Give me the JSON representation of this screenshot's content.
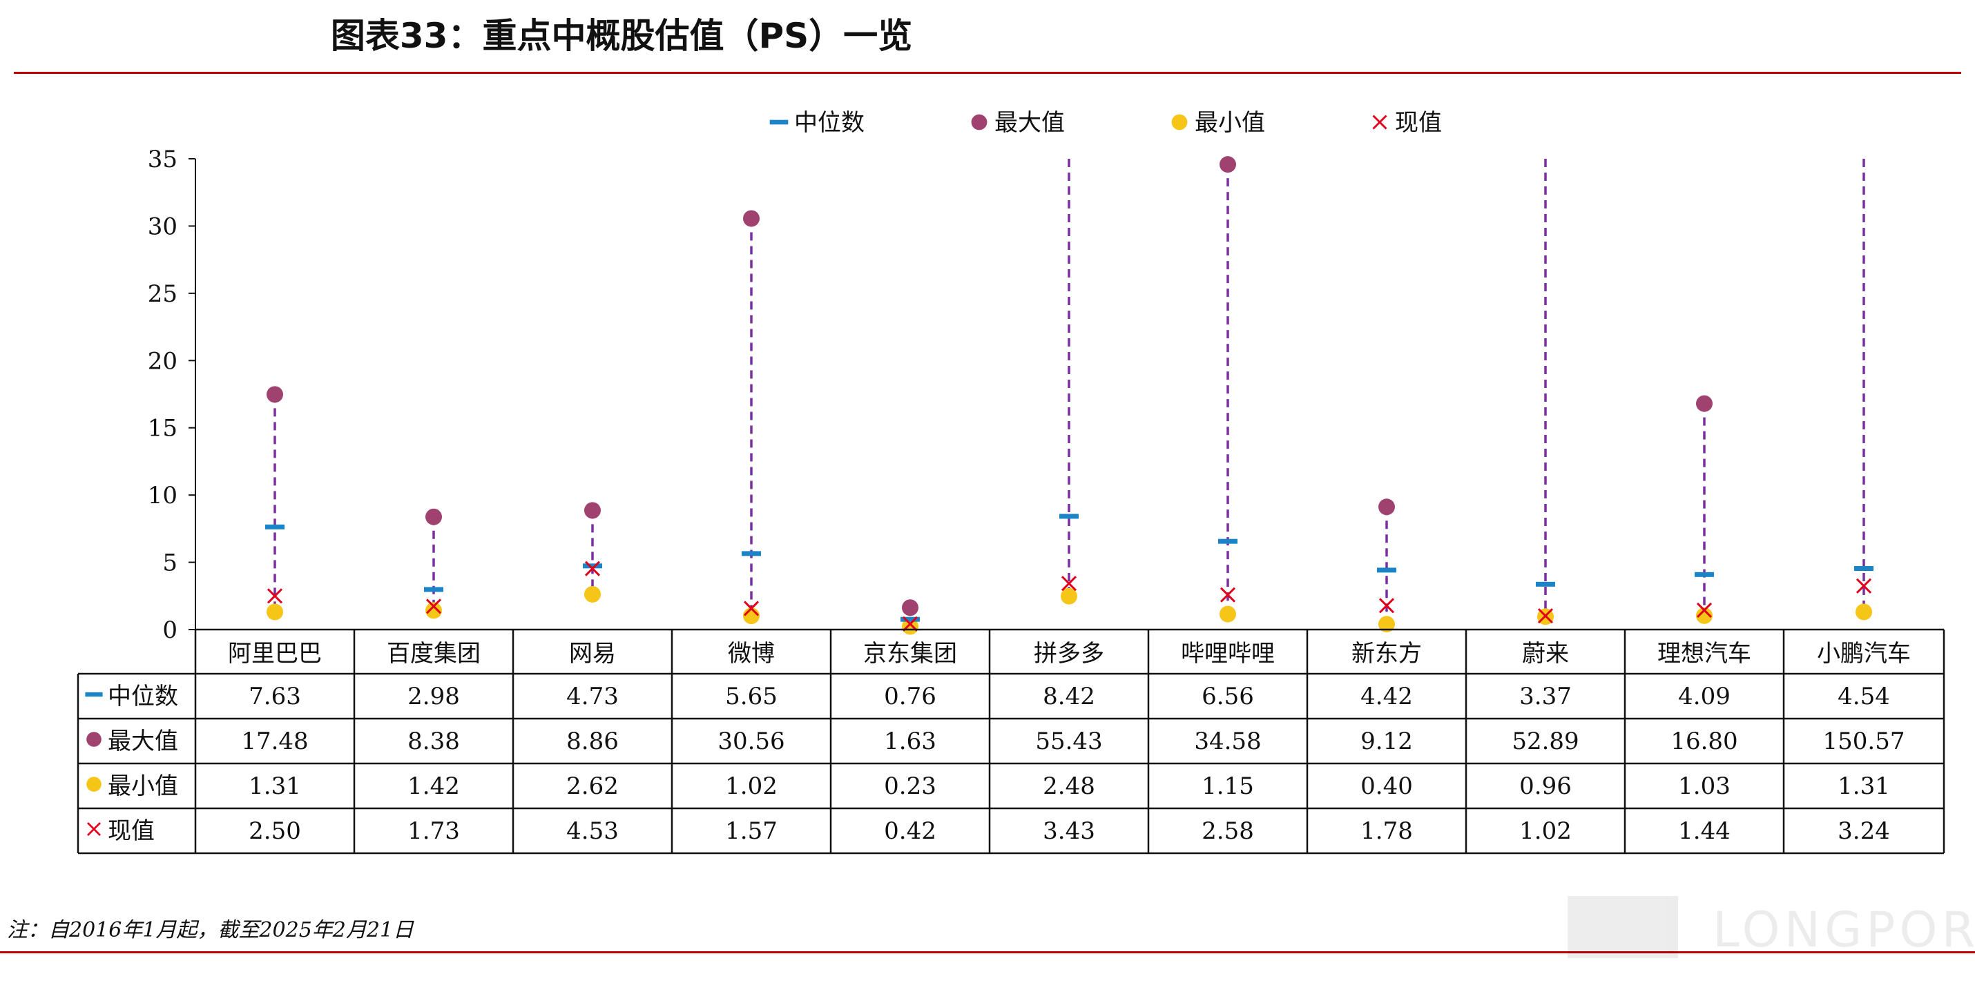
{
  "title": "图表33：重点中概股估值（PS）一览",
  "note": "注：自2016年1月起，截至2025年2月21日",
  "watermark": "LONGPORT",
  "colors": {
    "median": "#1a84c7",
    "max": "#a0426f",
    "min": "#f5c518",
    "current": "#e0001b",
    "range": "#7a2fa0",
    "rule": "#c00000"
  },
  "chart_data": {
    "type": "table",
    "categories": [
      "阿里巴巴",
      "百度集团",
      "网易",
      "微博",
      "京东集团",
      "拼多多",
      "哔哩哔哩",
      "新东方",
      "蔚来",
      "理想汽车",
      "小鹏汽车"
    ],
    "series": [
      {
        "name": "中位数",
        "marker": "dash",
        "values": [
          7.63,
          2.98,
          4.73,
          5.65,
          0.76,
          8.42,
          6.56,
          4.42,
          3.37,
          4.09,
          4.54
        ],
        "labels": [
          "7.63",
          "2.98",
          "4.73",
          "5.65",
          "0.76",
          "8.42",
          "6.56",
          "4.42",
          "3.37",
          "4.09",
          "4.54"
        ]
      },
      {
        "name": "最大值",
        "marker": "circle",
        "values": [
          17.48,
          8.38,
          8.86,
          30.56,
          1.63,
          55.43,
          34.58,
          9.12,
          52.89,
          16.8,
          150.57
        ],
        "labels": [
          "17.48",
          "8.38",
          "8.86",
          "30.56",
          "1.63",
          "55.43",
          "34.58",
          "9.12",
          "52.89",
          "16.80",
          "150.57"
        ]
      },
      {
        "name": "最小值",
        "marker": "circle",
        "values": [
          1.31,
          1.42,
          2.62,
          1.02,
          0.23,
          2.48,
          1.15,
          0.4,
          0.96,
          1.03,
          1.31
        ],
        "labels": [
          "1.31",
          "1.42",
          "2.62",
          "1.02",
          "0.23",
          "2.48",
          "1.15",
          "0.40",
          "0.96",
          "1.03",
          "1.31"
        ]
      },
      {
        "name": "现值",
        "marker": "x",
        "values": [
          2.5,
          1.73,
          4.53,
          1.57,
          0.42,
          3.43,
          2.58,
          1.78,
          1.02,
          1.44,
          3.24
        ],
        "labels": [
          "2.50",
          "1.73",
          "4.53",
          "1.57",
          "0.42",
          "3.43",
          "2.58",
          "1.78",
          "1.02",
          "1.44",
          "3.24"
        ]
      }
    ],
    "ylim": [
      0,
      35
    ],
    "yticks": [
      0,
      5,
      10,
      15,
      20,
      25,
      30,
      35
    ],
    "legend": "top-center",
    "grid": false
  }
}
